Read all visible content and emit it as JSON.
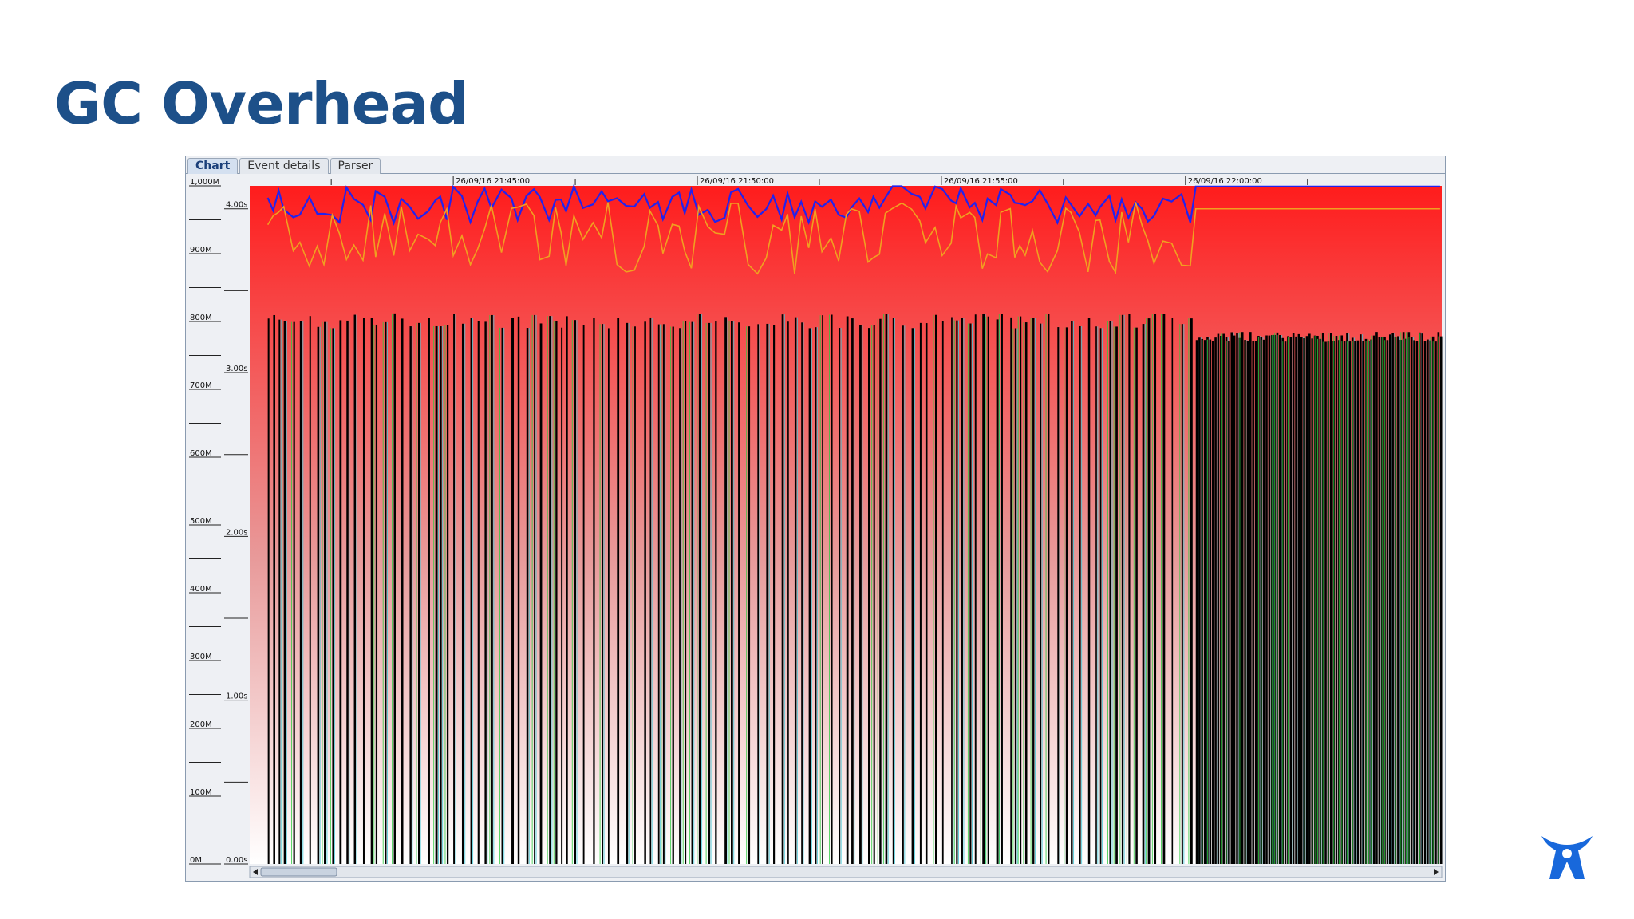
{
  "slide": {
    "title": "GC Overhead"
  },
  "tabs": [
    {
      "label": "Chart",
      "active": true
    },
    {
      "label": "Event details",
      "active": false
    },
    {
      "label": "Parser",
      "active": false
    }
  ],
  "logo": {
    "icon": "atlassian-logo-icon",
    "color": "#1868db"
  },
  "chart_data": {
    "type": "line",
    "x_ticks": [
      "26/09/16 21:45:00",
      "26/09/16 21:50:00",
      "26/09/16 21:55:00",
      "26/09/16 22:00:00"
    ],
    "y_left": {
      "ticks": [
        "0M",
        "100M",
        "200M",
        "300M",
        "400M",
        "500M",
        "600M",
        "700M",
        "800M",
        "900M",
        "1,000M"
      ],
      "range": [
        0,
        1000
      ]
    },
    "y_right": {
      "ticks": [
        "0.00s",
        "1.00s",
        "2.00s",
        "3.00s",
        "4.00s"
      ],
      "range": [
        0,
        4.14
      ]
    },
    "grid": false,
    "legend": "none",
    "colors": {
      "plot_top": "#ff1c1c",
      "plot_bottom": "#ffffff",
      "gc_bars": "#000000",
      "heap_line": "#2222ee",
      "pause_line": "#f0a020",
      "young_gen": "#2ecc40",
      "tenured": "#40c8d8"
    },
    "segments": [
      {
        "from": "21:40:50",
        "to": "22:00:10",
        "description_value": "heap oscillating 940M-1000M, GC pauses ~3.6-4.0s, used after GC ~790M-810M"
      },
      {
        "from": "22:00:10",
        "to": "22:05:15",
        "description_value": "heap flat ~1000M, continuous GC, used after GC ~770M-780M"
      }
    ]
  }
}
